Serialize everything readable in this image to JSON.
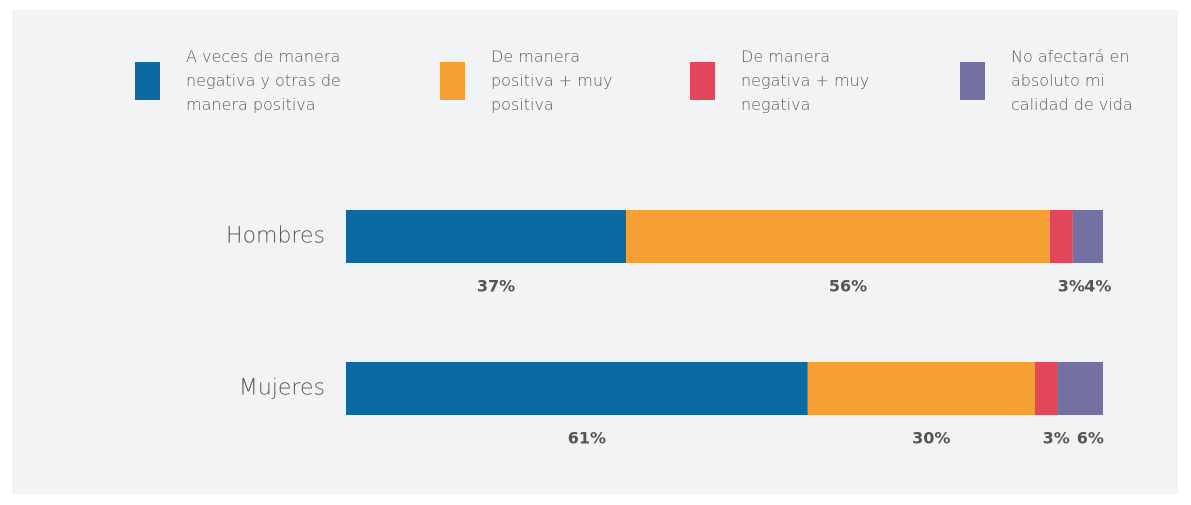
{
  "chart_data": {
    "type": "stacked_bar_horizontal",
    "categories": [
      "Hombres",
      "Mujeres"
    ],
    "series": [
      {
        "name": "A veces de manera negativa y otras de manera positiva",
        "color": "#0b6aa2",
        "values": [
          37,
          61
        ],
        "value_labels": [
          "37%",
          "61%"
        ]
      },
      {
        "name": "De manera positiva + muy positiva",
        "color": "#f4a034",
        "values": [
          56,
          30
        ],
        "value_labels": [
          "56%",
          "30%"
        ]
      },
      {
        "name": "De manera negativa + muy negativa",
        "color": "#e0485a",
        "values": [
          3,
          3
        ],
        "value_labels": [
          "3%",
          "3%"
        ]
      },
      {
        "name": "No afectará en absoluto mi calidad de vida",
        "color": "#7371a2",
        "values": [
          4,
          6
        ],
        "value_labels": [
          "4%",
          "6%"
        ]
      }
    ],
    "xlim": [
      0,
      100
    ]
  }
}
